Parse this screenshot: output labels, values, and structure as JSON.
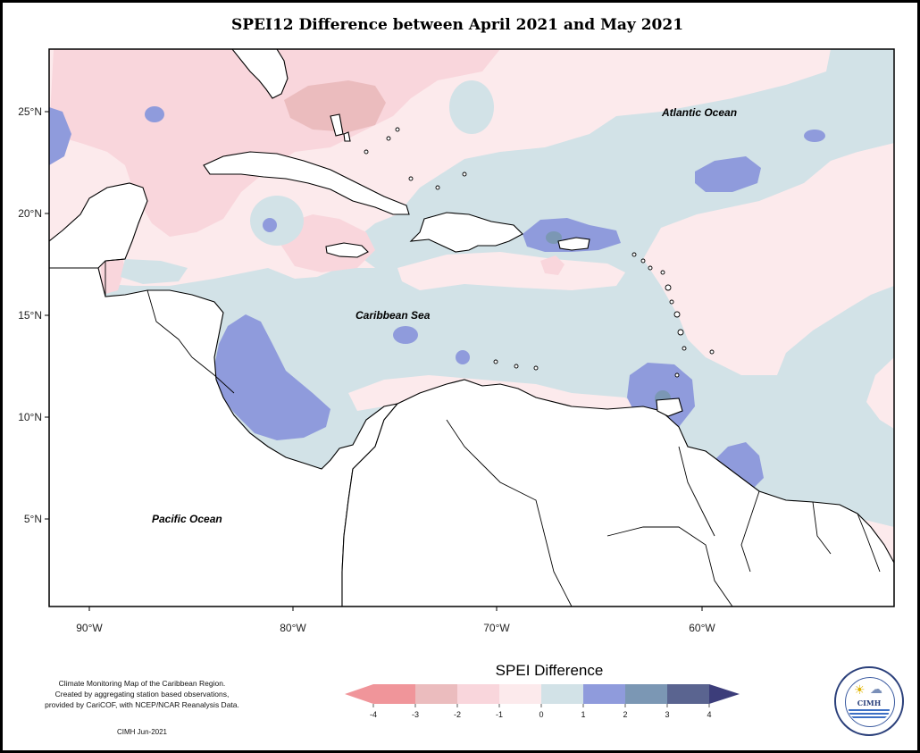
{
  "map": {
    "title": "SPEI12 Difference between April 2021 and May 2021",
    "lat_labels": [
      "25°N",
      "20°N",
      "15°N",
      "10°N",
      "5°N"
    ],
    "lon_labels": [
      "90°W",
      "80°W",
      "70°W",
      "60°W"
    ],
    "ocean_labels": {
      "atlantic": "Atlantic Ocean",
      "caribbean": "Caribbean Sea",
      "pacific": "Pacific Ocean"
    }
  },
  "legend": {
    "title": "SPEI Difference",
    "ticks": [
      "-4",
      "-3",
      "-2",
      "-1",
      "0",
      "1",
      "2",
      "3",
      "4"
    ],
    "colors": {
      "c_m4_m3": "#f0959a",
      "c_m3_m2": "#ebbcbe",
      "c_m2_m1": "#f9d6dc",
      "c_m1_0": "#fceaec",
      "c_0_1": "#d2e2e7",
      "c_1_2": "#8f9bdc",
      "c_2_3": "#7b97b4",
      "c_3_4": "#5a6490"
    }
  },
  "credits": {
    "line1": "Climate Monitoring Map of the Caribbean Region.",
    "line2": "Created by aggregating station based observations,",
    "line3": "provided by CariCOF, with NCEP/NCAR Reanalysis Data.",
    "date": "CIMH Jun-2021"
  },
  "logo": {
    "text": "CIMH",
    "sun_icon": "sun-icon",
    "cloud_icon": "cloud-icon"
  }
}
